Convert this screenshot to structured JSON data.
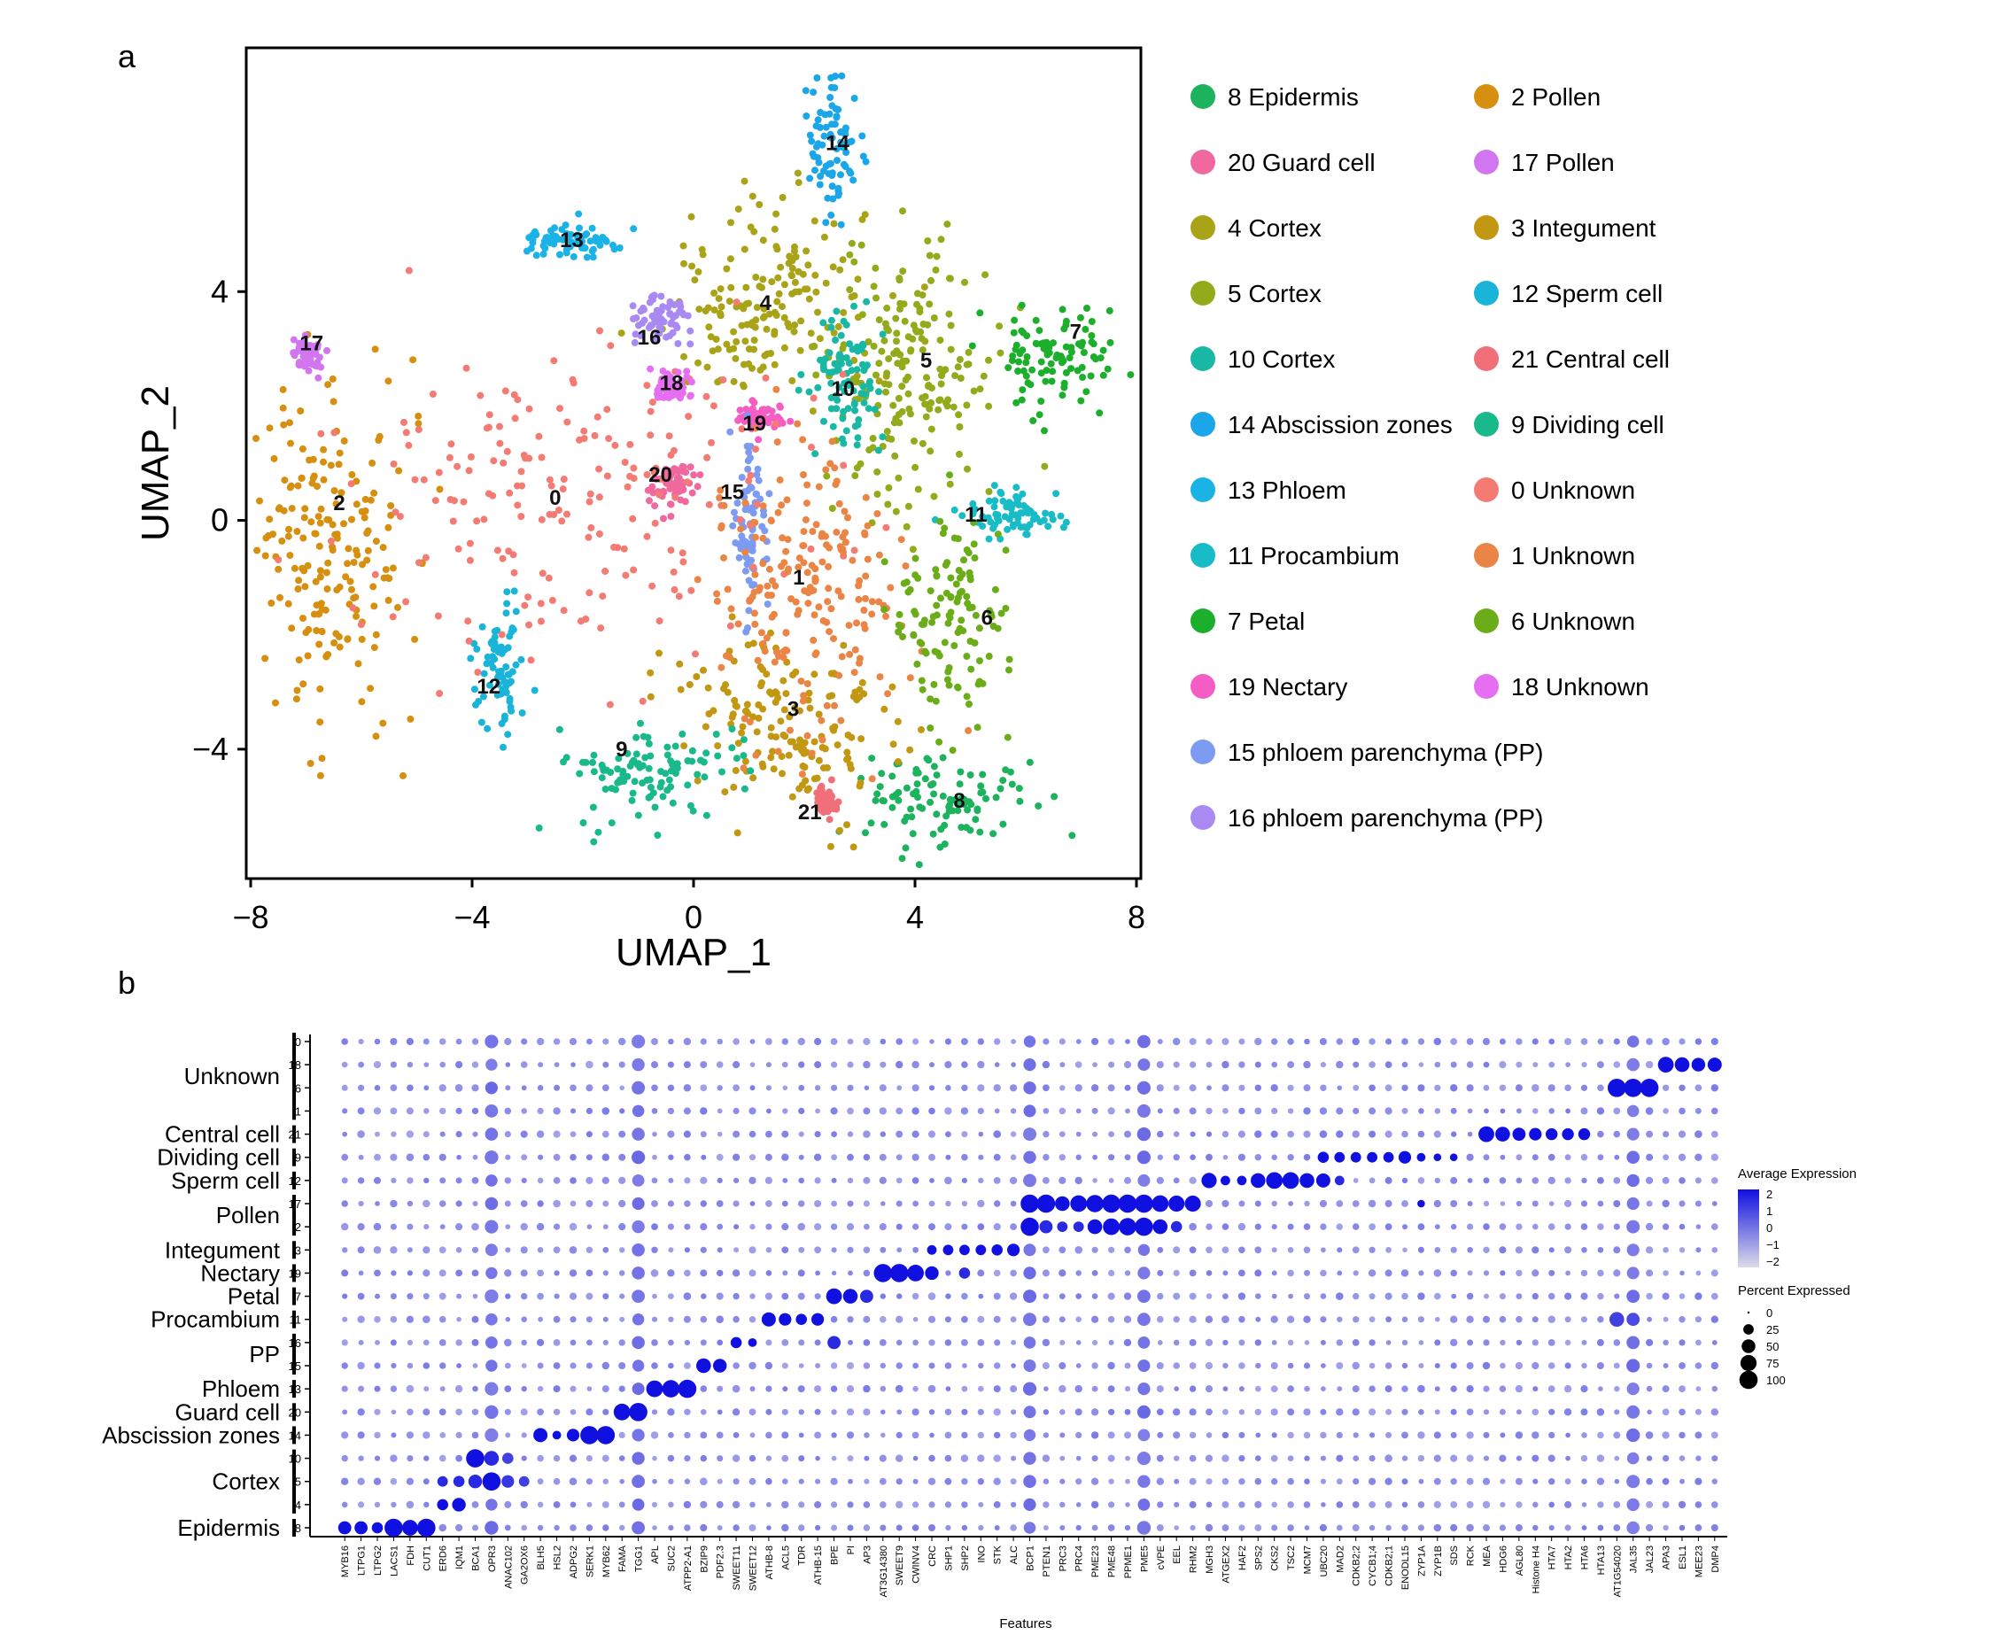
{
  "panel_labels": {
    "a": "a",
    "b": "b"
  },
  "chart_data": [
    {
      "type": "scatter",
      "panel": "a",
      "xlabel": "UMAP_1",
      "ylabel": "UMAP_2",
      "xlim": [
        -8,
        8
      ],
      "ylim": [
        -6.2,
        8.2
      ],
      "x_ticks": [
        -8,
        -4,
        0,
        4,
        8
      ],
      "y_ticks": [
        -4,
        0,
        4
      ],
      "x_tick_labels": [
        "−8",
        "−4",
        "0",
        "4",
        "8"
      ],
      "y_tick_labels": [
        "−4",
        "0",
        "4"
      ],
      "legend_position": "right",
      "clusters": [
        {
          "id": "8",
          "label": "8 Epidermis",
          "color": "#1db35e",
          "x": 4.5,
          "y": -4.9,
          "sx": 0.75,
          "sy": 0.4
        },
        {
          "id": "20",
          "label": "20 Guard cell",
          "color": "#f0699e",
          "x": -0.4,
          "y": 0.6,
          "sx": 0.2,
          "sy": 0.2
        },
        {
          "id": "4",
          "label": "4 Cortex",
          "color": "#a9a318",
          "x": 1.4,
          "y": 3.8,
          "sx": 0.9,
          "sy": 0.9
        },
        {
          "id": "5",
          "label": "5 Cortex",
          "color": "#93aa1a",
          "x": 4.0,
          "y": 2.6,
          "sx": 0.75,
          "sy": 1.2
        },
        {
          "id": "10",
          "label": "10 Cortex",
          "color": "#19b8a4",
          "x": 2.7,
          "y": 2.4,
          "sx": 0.35,
          "sy": 0.6
        },
        {
          "id": "14",
          "label": "14 Abscission zones",
          "color": "#1aa6e8",
          "x": 2.5,
          "y": 6.5,
          "sx": 0.25,
          "sy": 0.6
        },
        {
          "id": "13",
          "label": "13 Phloem",
          "color": "#1bb2e6",
          "x": -2.1,
          "y": 4.9,
          "sx": 0.5,
          "sy": 0.15
        },
        {
          "id": "11",
          "label": "11 Procambium",
          "color": "#18bcc6",
          "x": 5.8,
          "y": 0.1,
          "sx": 0.5,
          "sy": 0.2
        },
        {
          "id": "7",
          "label": "7 Petal",
          "color": "#1caf2c",
          "x": 6.6,
          "y": 2.8,
          "sx": 0.55,
          "sy": 0.5
        },
        {
          "id": "19",
          "label": "19 Nectary",
          "color": "#f55cc4",
          "x": 1.2,
          "y": 1.8,
          "sx": 0.2,
          "sy": 0.12
        },
        {
          "id": "15",
          "label": "15 phloem parenchyma (PP)",
          "color": "#7d9bf0",
          "x": 1.0,
          "y": 0.0,
          "sx": 0.15,
          "sy": 0.9
        },
        {
          "id": "16",
          "label": "16 phloem parenchyma (PP)",
          "color": "#a98af2",
          "x": -0.6,
          "y": 3.5,
          "sx": 0.3,
          "sy": 0.2
        },
        {
          "id": "2",
          "label": "2 Pollen",
          "color": "#d68f0e",
          "x": -6.6,
          "y": -0.6,
          "sx": 0.75,
          "sy": 1.4
        },
        {
          "id": "17",
          "label": "17 Pollen",
          "color": "#d176f0",
          "x": -7.0,
          "y": 2.9,
          "sx": 0.15,
          "sy": 0.15
        },
        {
          "id": "3",
          "label": "3 Integument",
          "color": "#c29712",
          "x": 1.6,
          "y": -3.5,
          "sx": 1.0,
          "sy": 0.7
        },
        {
          "id": "12",
          "label": "12 Sperm cell",
          "color": "#1ab4d8",
          "x": -3.5,
          "y": -2.6,
          "sx": 0.25,
          "sy": 0.55
        },
        {
          "id": "21",
          "label": "21 Central cell",
          "color": "#f06f78",
          "x": 2.4,
          "y": -4.9,
          "sx": 0.1,
          "sy": 0.12
        },
        {
          "id": "9",
          "label": "9 Dividing cell",
          "color": "#1ab98b",
          "x": -0.8,
          "y": -4.4,
          "sx": 0.85,
          "sy": 0.4
        },
        {
          "id": "0",
          "label": "0 Unknown",
          "color": "#f47b73",
          "x": -2.0,
          "y": 0.5,
          "sx": 2.0,
          "sy": 1.4
        },
        {
          "id": "1",
          "label": "1 Unknown",
          "color": "#ea8545",
          "x": 2.0,
          "y": -1.2,
          "sx": 0.9,
          "sy": 1.3
        },
        {
          "id": "6",
          "label": "6 Unknown",
          "color": "#6aad18",
          "x": 4.7,
          "y": -1.6,
          "sx": 0.5,
          "sy": 0.9
        },
        {
          "id": "18",
          "label": "18 Unknown",
          "color": "#e56ef2",
          "x": -0.4,
          "y": 2.3,
          "sx": 0.15,
          "sy": 0.15
        }
      ],
      "cluster_label_positions": [
        {
          "id": "0",
          "x": -2.5,
          "y": 0.4
        },
        {
          "id": "1",
          "x": 1.9,
          "y": -1.0
        },
        {
          "id": "2",
          "x": -6.4,
          "y": 0.3
        },
        {
          "id": "3",
          "x": 1.8,
          "y": -3.3
        },
        {
          "id": "4",
          "x": 1.3,
          "y": 3.8
        },
        {
          "id": "5",
          "x": 4.2,
          "y": 2.8
        },
        {
          "id": "6",
          "x": 5.3,
          "y": -1.7
        },
        {
          "id": "7",
          "x": 6.9,
          "y": 3.3
        },
        {
          "id": "8",
          "x": 4.8,
          "y": -4.9
        },
        {
          "id": "9",
          "x": -1.3,
          "y": -4.0
        },
        {
          "id": "10",
          "x": 2.7,
          "y": 2.3
        },
        {
          "id": "11",
          "x": 5.1,
          "y": 0.1
        },
        {
          "id": "12",
          "x": -3.7,
          "y": -2.9
        },
        {
          "id": "13",
          "x": -2.2,
          "y": 4.9
        },
        {
          "id": "14",
          "x": 2.6,
          "y": 6.6
        },
        {
          "id": "15",
          "x": 0.7,
          "y": 0.5
        },
        {
          "id": "16",
          "x": -0.8,
          "y": 3.2
        },
        {
          "id": "17",
          "x": -6.9,
          "y": 3.1
        },
        {
          "id": "18",
          "x": -0.4,
          "y": 2.4
        },
        {
          "id": "19",
          "x": 1.1,
          "y": 1.7
        },
        {
          "id": "20",
          "x": -0.6,
          "y": 0.8
        },
        {
          "id": "21",
          "x": 2.1,
          "y": -5.1
        }
      ]
    },
    {
      "type": "dotplot",
      "panel": "b",
      "xlabel": "Features",
      "rows": [
        "0",
        "18",
        "6",
        "1",
        "21",
        "9",
        "12",
        "17",
        "2",
        "3",
        "19",
        "7",
        "11",
        "16",
        "15",
        "13",
        "20",
        "14",
        "10",
        "5",
        "4",
        "8"
      ],
      "row_groups": [
        {
          "label": "Unknown",
          "rows": [
            "0",
            "18",
            "6",
            "1"
          ]
        },
        {
          "label": "Central cell",
          "rows": [
            "21"
          ]
        },
        {
          "label": "Dividing cell",
          "rows": [
            "9"
          ]
        },
        {
          "label": "Sperm cell",
          "rows": [
            "12"
          ]
        },
        {
          "label": "Pollen",
          "rows": [
            "17",
            "2"
          ]
        },
        {
          "label": "Integument",
          "rows": [
            "3"
          ]
        },
        {
          "label": "Nectary",
          "rows": [
            "19"
          ]
        },
        {
          "label": "Petal",
          "rows": [
            "7"
          ]
        },
        {
          "label": "Procambium",
          "rows": [
            "11"
          ]
        },
        {
          "label": "PP",
          "rows": [
            "16",
            "15"
          ]
        },
        {
          "label": "Phloem",
          "rows": [
            "13"
          ]
        },
        {
          "label": "Guard cell",
          "rows": [
            "20"
          ]
        },
        {
          "label": "Abscission zones",
          "rows": [
            "14"
          ]
        },
        {
          "label": "Cortex",
          "rows": [
            "10",
            "5",
            "4"
          ]
        },
        {
          "label": "Epidermis",
          "rows": [
            "8"
          ]
        }
      ],
      "features": [
        "MYB16",
        "LTPG1",
        "LTPG2",
        "LACS1",
        "FDH",
        "CUT1",
        "ERD6",
        "IQM1",
        "BCA1",
        "OPR3",
        "ANAC102",
        "GA2OX6",
        "BLH5",
        "HSL2",
        "ADPG2",
        "SERK1",
        "MYB62",
        "FAMA",
        "TGG1",
        "APL",
        "SUC2",
        "ATPP2-A1",
        "BZIP9",
        "PDF2.3",
        "SWEET11",
        "SWEET12",
        "ATHB-8",
        "ACL5",
        "TDR",
        "ATHB-15",
        "BPE",
        "PI",
        "AP3",
        "AT3G14380",
        "SWEET9",
        "CWINV4",
        "CRC",
        "SHP1",
        "SHP2",
        "INO",
        "STK",
        "ALC",
        "BCP1",
        "PTEN1",
        "PRC3",
        "PRC4",
        "PME23",
        "PME48",
        "PPME1",
        "PME5",
        "cVPE",
        "EEL",
        "RHM2",
        "MGH3",
        "ATGEX2",
        "HAF2",
        "SPS2",
        "CKS2",
        "TSC2",
        "MCM7",
        "UBC20",
        "MAD2",
        "CDKB2;2",
        "CYCB1;4",
        "CDKB2;1",
        "ENODL15",
        "ZYP1A",
        "ZYP1B",
        "SDS",
        "RCK",
        "MEA",
        "HDG6",
        "AGL80",
        "Histone H4",
        "HTA7",
        "HTA2",
        "HTA6",
        "HTA13",
        "AT1G54020",
        "JAL35",
        "JAL23",
        "APA3",
        "ESL1",
        "MEE23",
        "DMP4"
      ],
      "broad_features": [
        "TGG1",
        "PME5",
        "OPR3",
        "BCP1",
        "JAL35"
      ],
      "highlights": [
        {
          "row": "8",
          "features": [
            "MYB16",
            "LTPG1",
            "LTPG2",
            "LACS1",
            "FDH",
            "CUT1"
          ],
          "pct": [
            45,
            45,
            30,
            100,
            70,
            100
          ],
          "avg": [
            2,
            2,
            2,
            2,
            2,
            2
          ]
        },
        {
          "row": "4",
          "features": [
            "ERD6",
            "IQM1"
          ],
          "pct": [
            30,
            50
          ],
          "avg": [
            2,
            2
          ]
        },
        {
          "row": "5",
          "features": [
            "ERD6",
            "IQM1",
            "BCA1",
            "OPR3",
            "ANAC102",
            "GA2OX6"
          ],
          "pct": [
            25,
            30,
            50,
            100,
            40,
            25
          ],
          "avg": [
            1.5,
            1.5,
            1.5,
            2,
            1.2,
            1
          ]
        },
        {
          "row": "10",
          "features": [
            "BCA1",
            "OPR3",
            "ANAC102"
          ],
          "pct": [
            100,
            60,
            30
          ],
          "avg": [
            2,
            1.5,
            1
          ]
        },
        {
          "row": "14",
          "features": [
            "BLH5",
            "HSL2",
            "ADPG2",
            "SERK1",
            "MYB62"
          ],
          "pct": [
            55,
            15,
            40,
            100,
            100
          ],
          "avg": [
            2,
            2,
            2,
            2,
            2
          ]
        },
        {
          "row": "20",
          "features": [
            "FAMA",
            "TGG1"
          ],
          "pct": [
            80,
            100
          ],
          "avg": [
            2,
            2
          ]
        },
        {
          "row": "13",
          "features": [
            "APL",
            "SUC2",
            "ATPP2-A1"
          ],
          "pct": [
            80,
            90,
            100
          ],
          "avg": [
            2,
            2,
            2
          ]
        },
        {
          "row": "15",
          "features": [
            "BZIP9",
            "PDF2.3"
          ],
          "pct": [
            60,
            50
          ],
          "avg": [
            2,
            2
          ]
        },
        {
          "row": "16",
          "features": [
            "SWEET11",
            "SWEET12",
            "BPE"
          ],
          "pct": [
            30,
            15,
            45
          ],
          "avg": [
            2,
            2,
            1.5
          ]
        },
        {
          "row": "11",
          "features": [
            "ATHB-8",
            "ACL5",
            "TDR",
            "ATHB-15"
          ],
          "pct": [
            55,
            40,
            30,
            40
          ],
          "avg": [
            2,
            2,
            2,
            2
          ]
        },
        {
          "row": "7",
          "features": [
            "BPE",
            "PI",
            "AP3"
          ],
          "pct": [
            70,
            60,
            45
          ],
          "avg": [
            2,
            2,
            1.5
          ]
        },
        {
          "row": "19",
          "features": [
            "AT3G14380",
            "SWEET9",
            "CWINV4",
            "CRC",
            "SHP2"
          ],
          "pct": [
            100,
            100,
            80,
            50,
            30
          ],
          "avg": [
            2,
            2,
            2,
            2,
            1.5
          ]
        },
        {
          "row": "3",
          "features": [
            "CRC",
            "SHP1",
            "SHP2",
            "INO",
            "STK",
            "ALC"
          ],
          "pct": [
            20,
            25,
            25,
            25,
            30,
            40
          ],
          "avg": [
            2,
            2,
            2,
            2,
            2,
            2
          ]
        },
        {
          "row": "17",
          "features": [
            "BCP1",
            "PTEN1",
            "PRC3",
            "PRC4",
            "PME23",
            "PME48",
            "PPME1",
            "PME5",
            "cVPE",
            "EEL",
            "RHM2"
          ],
          "pct": [
            100,
            100,
            60,
            80,
            90,
            100,
            100,
            100,
            80,
            75,
            75
          ],
          "avg": [
            2,
            2,
            2,
            2,
            2,
            2,
            2,
            2,
            2,
            2,
            2
          ]
        },
        {
          "row": "2",
          "features": [
            "BCP1",
            "PTEN1",
            "PRC3",
            "PRC4",
            "PME23",
            "PME48",
            "PPME1",
            "PME5",
            "cVPE",
            "EEL"
          ],
          "pct": [
            100,
            45,
            25,
            25,
            60,
            80,
            90,
            100,
            60,
            30
          ],
          "avg": [
            2,
            1.5,
            1.5,
            1.5,
            2,
            2,
            2,
            2,
            2,
            1.5
          ]
        },
        {
          "row": "12",
          "features": [
            "MGH3",
            "ATGEX2",
            "HAF2",
            "SPS2",
            "CKS2",
            "TSC2",
            "MCM7",
            "UBC20",
            "MAD2"
          ],
          "pct": [
            65,
            20,
            20,
            60,
            80,
            80,
            60,
            55,
            20
          ],
          "avg": [
            2,
            2,
            2,
            2,
            2,
            2,
            2,
            2,
            1.5
          ]
        },
        {
          "row": "9",
          "features": [
            "UBC20",
            "MAD2",
            "CDKB2;2",
            "CYCB1;4",
            "CDKB2;1",
            "ENODL15",
            "ZYP1A",
            "ZYP1B",
            "SDS"
          ],
          "pct": [
            30,
            25,
            25,
            25,
            25,
            40,
            15,
            10,
            10
          ],
          "avg": [
            2,
            2,
            2,
            2,
            2,
            2,
            2,
            2,
            2
          ]
        },
        {
          "row": "21",
          "features": [
            "MEA",
            "HDG6",
            "AGL80",
            "Histone H4",
            "HTA7",
            "HTA2",
            "HTA6"
          ],
          "pct": [
            70,
            60,
            45,
            40,
            35,
            35,
            35
          ],
          "avg": [
            2,
            2,
            2,
            2,
            2,
            2,
            2
          ]
        },
        {
          "row": "6",
          "features": [
            "AT1G54020",
            "JAL35",
            "JAL23"
          ],
          "pct": [
            100,
            100,
            100
          ],
          "avg": [
            2,
            2,
            2
          ]
        },
        {
          "row": "18",
          "features": [
            "APA3",
            "ESL1",
            "MEE23",
            "DMP4"
          ],
          "pct": [
            70,
            60,
            50,
            55
          ],
          "avg": [
            2,
            2,
            2,
            2
          ]
        },
        {
          "row": "11",
          "features": [
            "AT1G54020",
            "JAL35"
          ],
          "pct": [
            60,
            45
          ],
          "avg": [
            1,
            0.8
          ]
        },
        {
          "row": "17",
          "features": [
            "ZYP1A"
          ],
          "pct": [
            10
          ],
          "avg": [
            2
          ]
        }
      ],
      "legend": {
        "avg_title": "Average Expression",
        "avg_ticks": [
          "2",
          "1",
          "0",
          "−1",
          "−2"
        ],
        "pct_title": "Percent Expressed",
        "pct_ticks": [
          "0",
          "25",
          "50",
          "75",
          "100"
        ]
      },
      "colors": {
        "high": "#1010e0",
        "low": "#d8d8e8"
      }
    }
  ]
}
